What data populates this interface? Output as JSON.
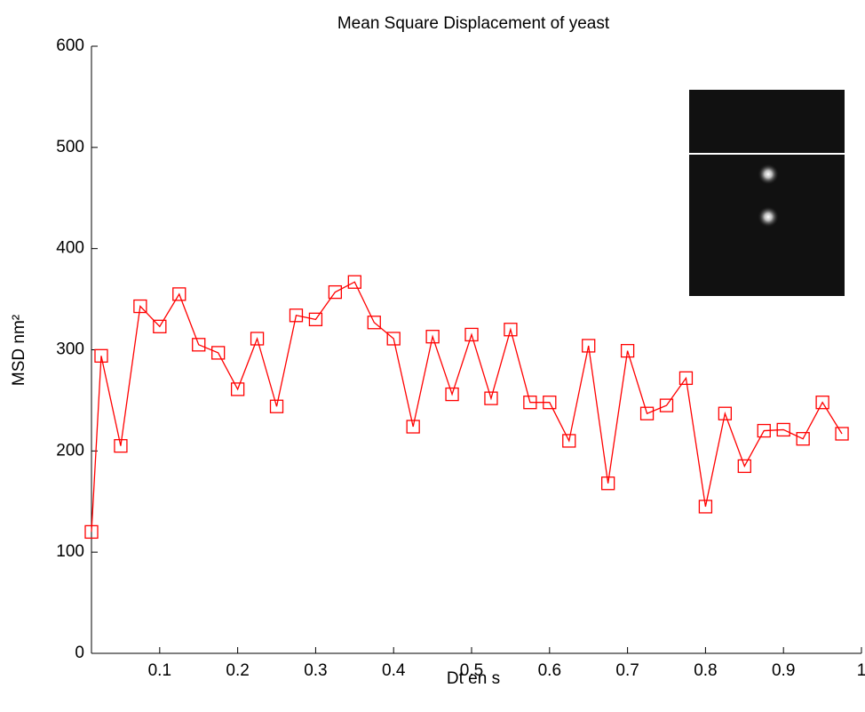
{
  "chart_data": {
    "type": "line",
    "title": "Mean Square Displacement of yeast",
    "x_label": "Dt en s",
    "y_label": "MSD nm²",
    "x": [
      0.0125,
      0.025,
      0.05,
      0.075,
      0.1,
      0.125,
      0.15,
      0.175,
      0.2,
      0.225,
      0.25,
      0.275,
      0.3,
      0.325,
      0.35,
      0.375,
      0.4,
      0.425,
      0.45,
      0.475,
      0.5,
      0.525,
      0.55,
      0.575,
      0.6,
      0.625,
      0.65,
      0.675,
      0.7,
      0.725,
      0.75,
      0.775,
      0.8,
      0.825,
      0.85,
      0.875,
      0.9,
      0.925,
      0.95,
      0.975
    ],
    "series": [
      {
        "color": "#ff0000",
        "marker": "square",
        "values": [
          120,
          294,
          205,
          343,
          323,
          355,
          305,
          297,
          261,
          311,
          244,
          334,
          330,
          357,
          367,
          327,
          311,
          224,
          313,
          256,
          315,
          252,
          320,
          248,
          248,
          210,
          304,
          168,
          299,
          237,
          245,
          272,
          145,
          237,
          185,
          220,
          221,
          212,
          248,
          217
        ]
      }
    ],
    "xlim": [
      0.0125,
      1
    ],
    "ylim": [
      0,
      600
    ],
    "xticks": [
      0.1,
      0.2,
      0.3,
      0.4,
      0.5,
      0.6,
      0.7,
      0.8,
      0.9,
      1
    ],
    "yticks": [
      0,
      100,
      200,
      300,
      400,
      500,
      600
    ],
    "grid": false
  }
}
